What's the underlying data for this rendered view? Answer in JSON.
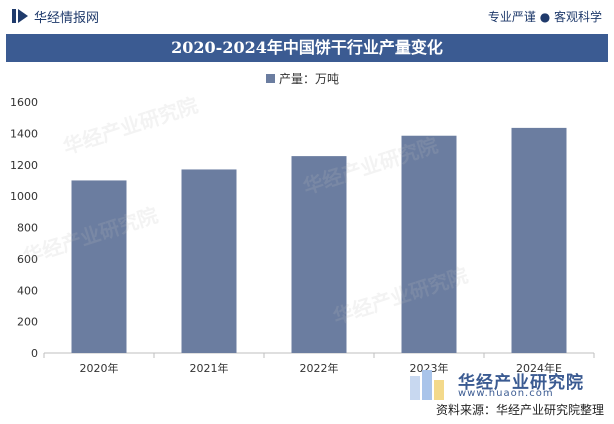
{
  "header": {
    "brand": "华经情报网",
    "tagline": "专业严谨 ● 客观科学"
  },
  "chart_data": {
    "type": "bar",
    "title": "2020-2024年中国饼干行业产量变化",
    "categories": [
      "2020年",
      "2021年",
      "2022年",
      "2023年",
      "2024年E"
    ],
    "series": [
      {
        "name": "产量：万吨",
        "values": [
          1100,
          1170,
          1255,
          1385,
          1435
        ]
      }
    ],
    "xlabel": "",
    "ylabel": "",
    "ylim": [
      0,
      1600
    ],
    "yticks": [
      0,
      200,
      400,
      600,
      800,
      1000,
      1200,
      1400,
      1600
    ],
    "legend_position": "top-center",
    "grid": false,
    "bar_color": "#6b7da0"
  },
  "footer": {
    "brand": "华经产业研究院",
    "url": "www.huaon.com",
    "source": "资料来源：华经产业研究院整理"
  },
  "colors": {
    "title_bar": "#3b5b92",
    "accent": "#1f3a6b"
  }
}
